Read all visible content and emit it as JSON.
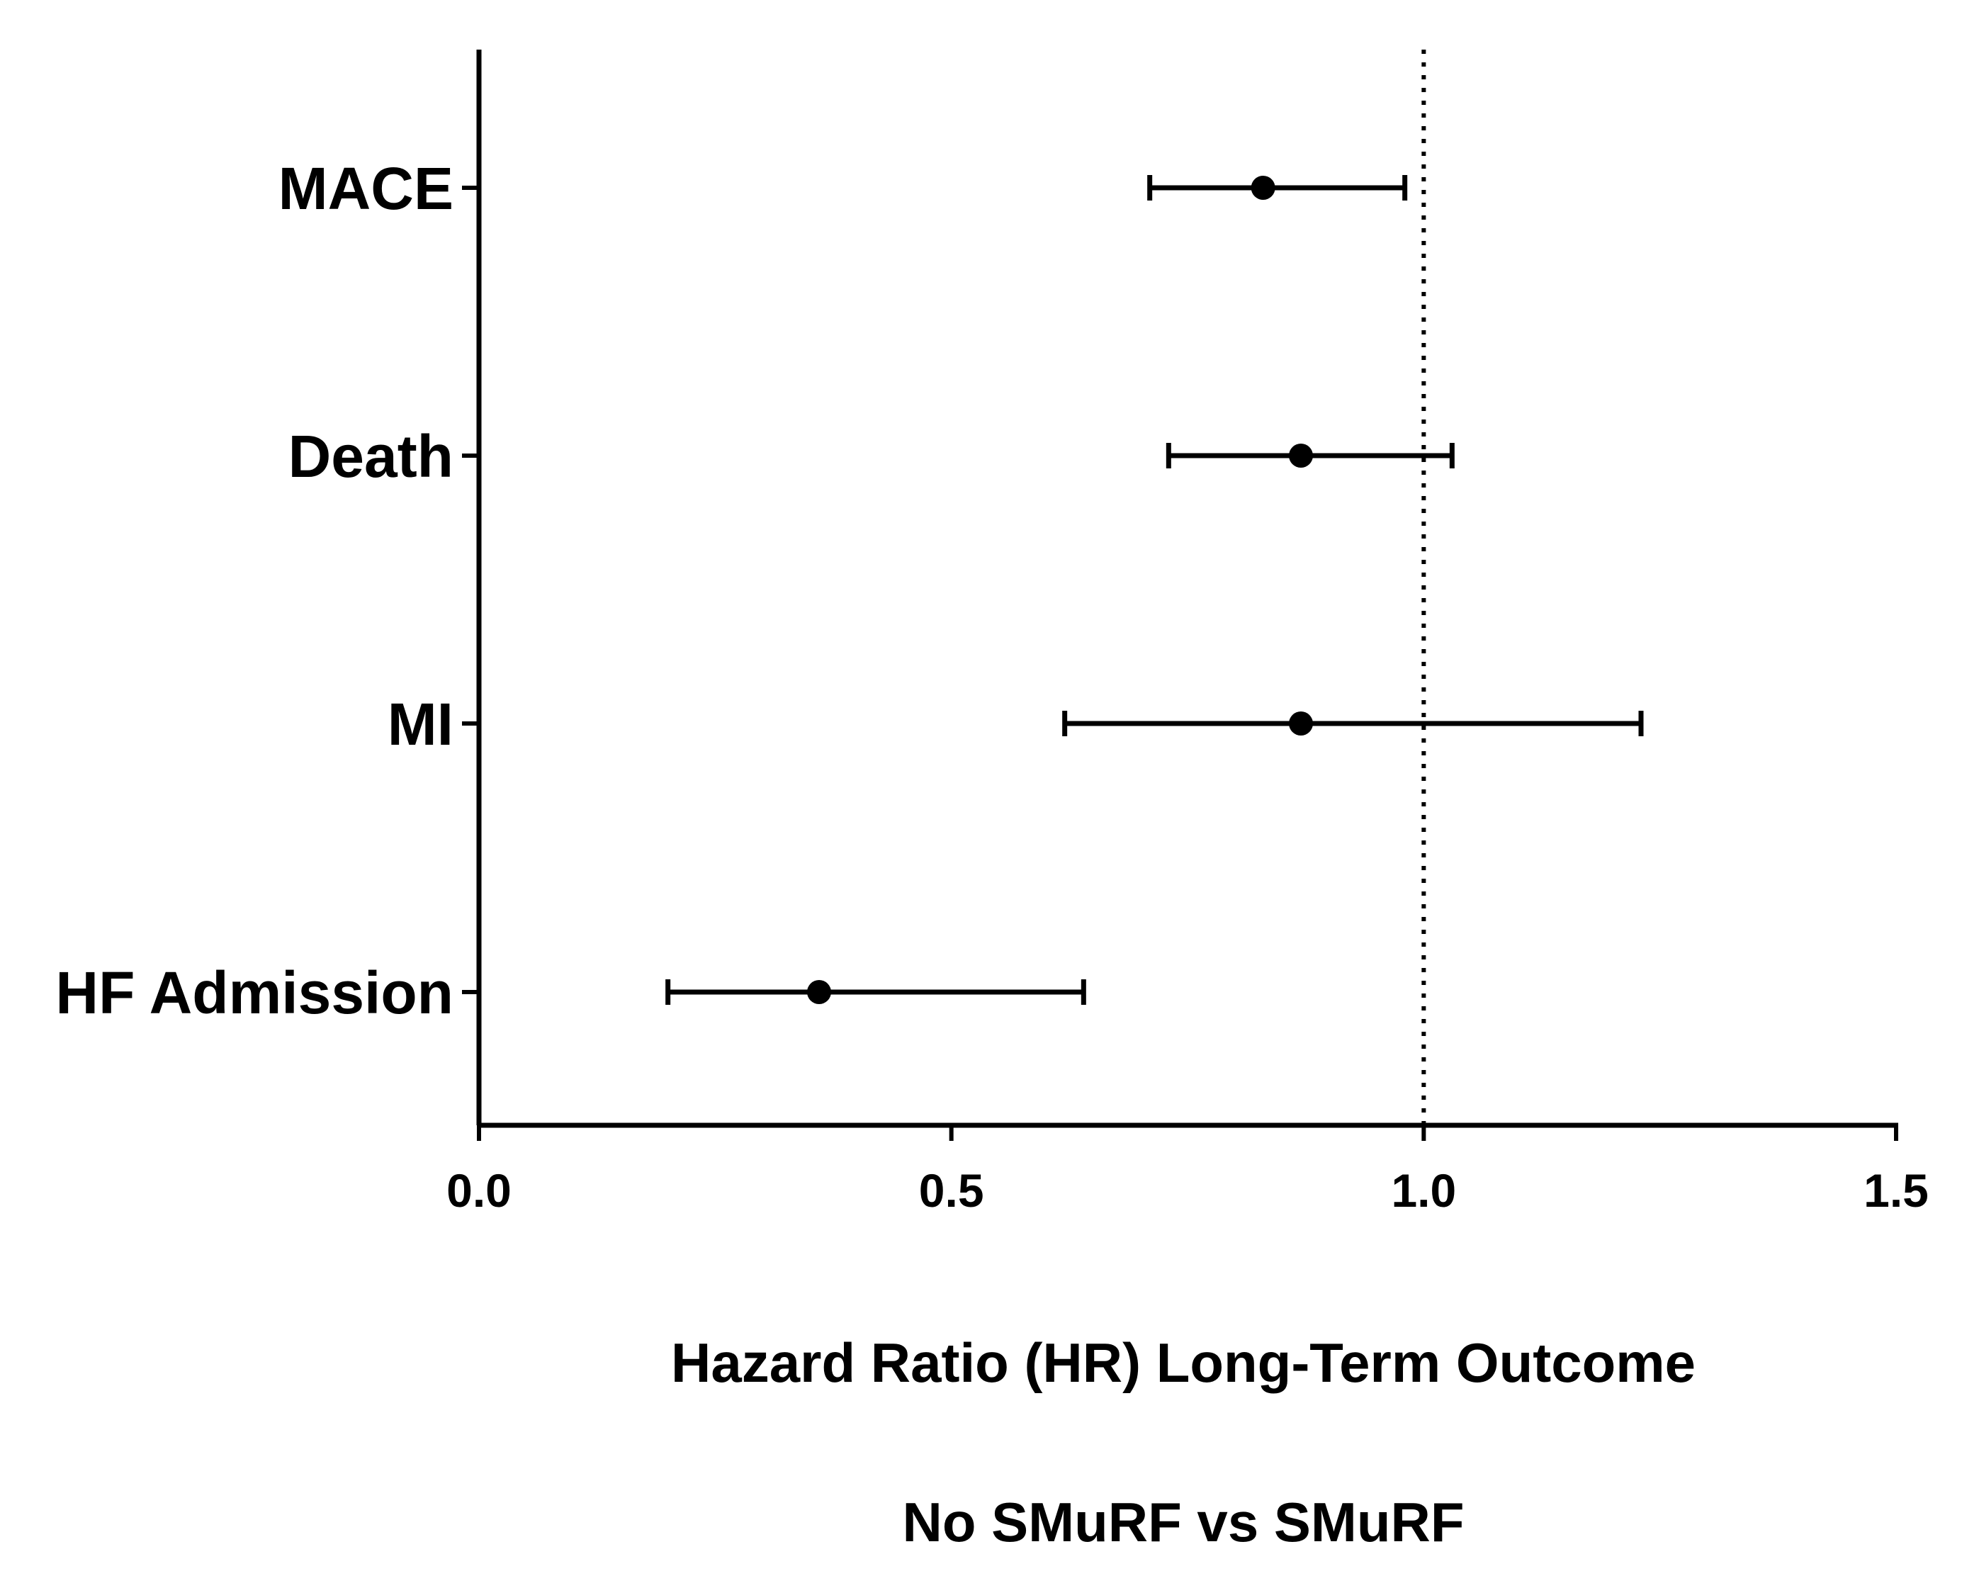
{
  "chart_data": {
    "type": "forest",
    "categories": [
      "MACE",
      "Death",
      "MI",
      "HF Admission"
    ],
    "series": [
      {
        "estimates": [
          0.83,
          0.87,
          0.87,
          0.36
        ],
        "ci_lower": [
          0.71,
          0.73,
          0.62,
          0.2
        ],
        "ci_upper": [
          0.98,
          1.03,
          1.23,
          0.64
        ]
      }
    ],
    "xlim": [
      0,
      1.5
    ],
    "xticks": [
      "0.0",
      "0.5",
      "1.0",
      "1.5"
    ],
    "reference_line": 1.0,
    "xlabel": "Hazard Ratio (HR) Long-Term Outcome",
    "xlabel_line2": "No SMuRF vs SMuRF",
    "grid": false,
    "colors": {
      "marks": "#000000"
    }
  }
}
